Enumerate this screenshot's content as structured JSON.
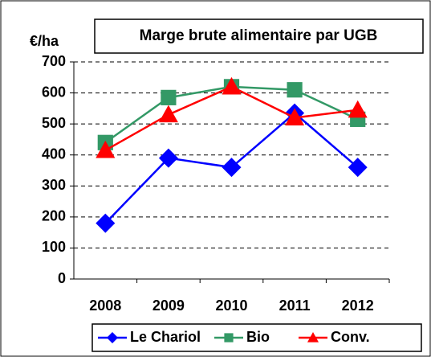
{
  "chart_data": {
    "type": "line",
    "title": "Marge brute alimentaire par UGB",
    "ylabel": "€/ha",
    "categories": [
      "2008",
      "2009",
      "2010",
      "2011",
      "2012"
    ],
    "series": [
      {
        "name": "Le Chariol",
        "color": "#0000ff",
        "marker": "diamond",
        "values": [
          180,
          390,
          360,
          535,
          360
        ]
      },
      {
        "name": "Bio",
        "color": "#339966",
        "marker": "square",
        "values": [
          440,
          585,
          620,
          610,
          515
        ]
      },
      {
        "name": "Conv.",
        "color": "#ff0000",
        "marker": "triangle",
        "values": [
          415,
          530,
          620,
          520,
          545
        ]
      }
    ],
    "ylim": [
      0,
      700
    ],
    "yticks": [
      0,
      100,
      200,
      300,
      400,
      500,
      600,
      700
    ],
    "grid": true,
    "legend": "bottom"
  }
}
